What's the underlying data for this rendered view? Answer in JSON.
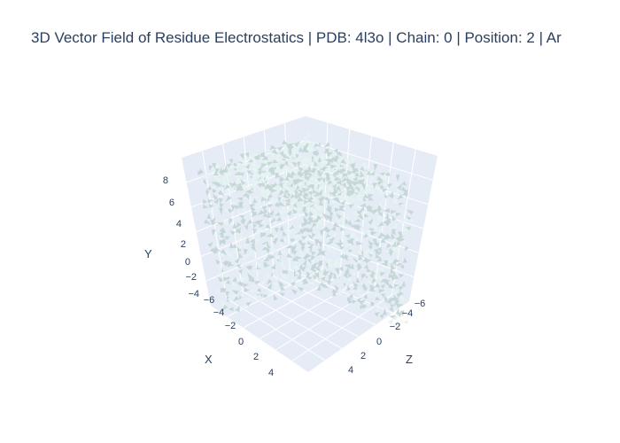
{
  "chart_data": {
    "type": "cone",
    "title": "3D Vector Field of Residue Electrostatics | PDB: 4l3o | Chain: 0 | Position: 2 | Ar",
    "axes": {
      "x": {
        "label": "X",
        "ticks": [
          "−6",
          "−4",
          "−2",
          "0",
          "2",
          "4"
        ]
      },
      "y": {
        "label": "Y",
        "ticks": [
          "−4",
          "−2",
          "0",
          "2",
          "4",
          "6",
          "8"
        ]
      },
      "z": {
        "label": "Z",
        "ticks": [
          "−6",
          "−4",
          "−2",
          "0",
          "2",
          "4"
        ]
      }
    },
    "colors": {
      "cone": "#c4d6d5",
      "cone_light": "#e6f3f2",
      "pane": "#e5ecf6",
      "grid": "#ffffff",
      "text": "#2a3f5f"
    },
    "grid": true,
    "showscale": false
  }
}
